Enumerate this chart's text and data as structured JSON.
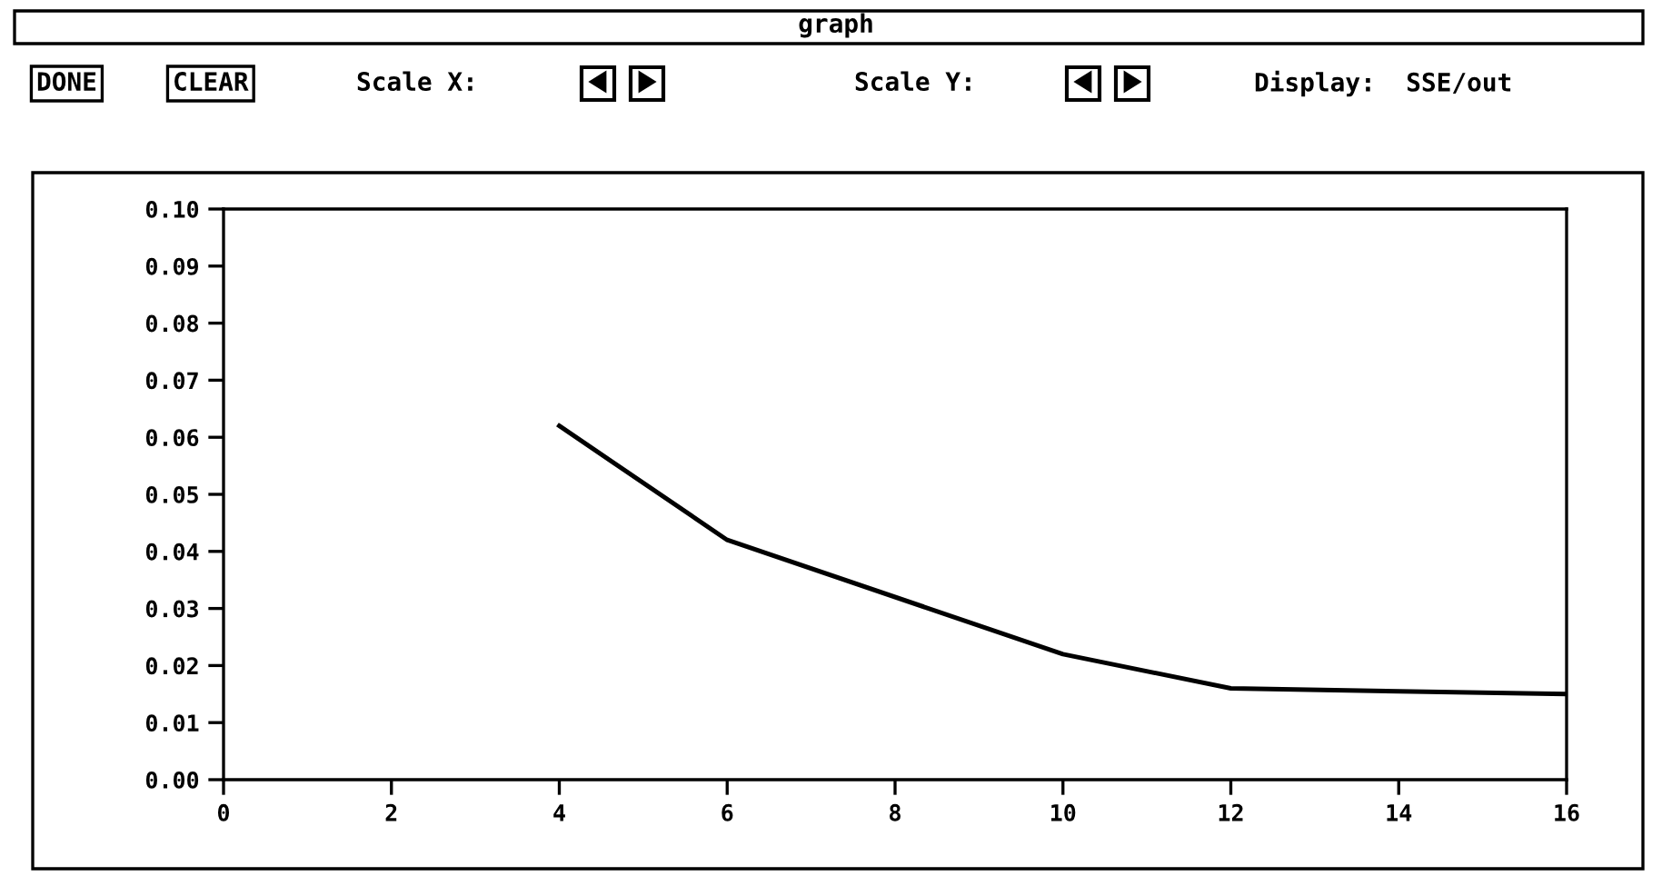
{
  "chart_data": {
    "type": "line",
    "title": "graph",
    "annotations": [
      "DONE",
      "CLEAR",
      "Scale X:",
      "Scale Y:",
      "Display:  SSE/out"
    ],
    "x": [
      4,
      6,
      10,
      12,
      16
    ],
    "values": [
      0.062,
      0.042,
      0.022,
      0.016,
      0.015
    ],
    "color": "#000000",
    "xlim": [
      0,
      16
    ],
    "xticks": [
      0,
      2,
      4,
      6,
      8,
      10,
      12,
      14,
      16
    ],
    "ylim": [
      0,
      0.1
    ],
    "yticks": [
      {
        "value": 0,
        "label": "0.00"
      },
      {
        "value": 0.01,
        "label": "0.01"
      },
      {
        "value": 0.02,
        "label": "0.02"
      },
      {
        "value": 0.03,
        "label": "0.03"
      },
      {
        "value": 0.04,
        "label": "0.04"
      },
      {
        "value": 0.05,
        "label": "0.05"
      },
      {
        "value": 0.06,
        "label": "0.06"
      },
      {
        "value": 0.07,
        "label": "0.07"
      },
      {
        "value": 0.08,
        "label": "0.08"
      },
      {
        "value": 0.09,
        "label": "0.09"
      },
      {
        "value": 0.1,
        "label": "0.10"
      }
    ],
    "grid": false,
    "marker": "none",
    "line_style": "solid"
  }
}
